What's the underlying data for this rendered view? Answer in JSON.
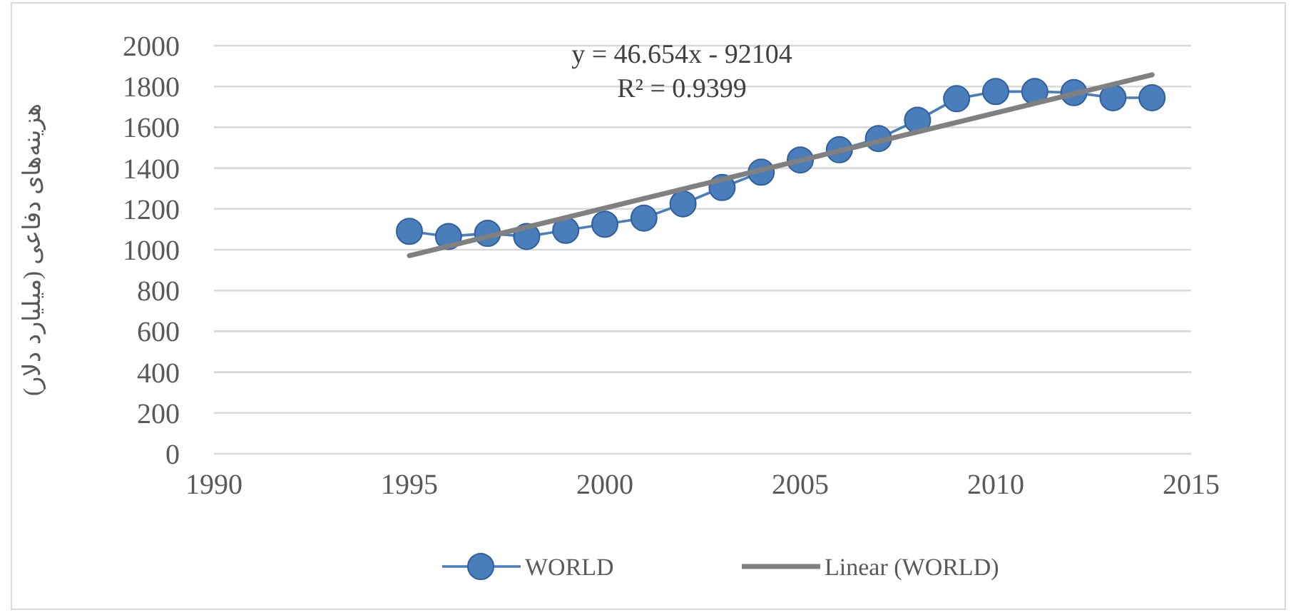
{
  "chart_data": {
    "type": "line",
    "ylabel": "هزینه‌های دفاعی (میلیارد دلار)",
    "annotations": [
      "y = 46.654x - 92104",
      "R² = 0.9399"
    ],
    "xlim": [
      1990,
      2015
    ],
    "xticks": [
      1990,
      1995,
      2000,
      2005,
      2010,
      2015
    ],
    "ylim": [
      0,
      2000
    ],
    "yticks": [
      0,
      200,
      400,
      600,
      800,
      1000,
      1200,
      1400,
      1600,
      1800,
      2000
    ],
    "grid": "y",
    "legend": "bottom",
    "series": [
      {
        "name": "WORLD",
        "color": "#4a7ebb",
        "marker": "circle",
        "x": [
          1995,
          1996,
          1997,
          1998,
          1999,
          2000,
          2001,
          2002,
          2003,
          2004,
          2005,
          2006,
          2007,
          2008,
          2009,
          2010,
          2011,
          2012,
          2013,
          2014
        ],
        "values": [
          1090,
          1065,
          1080,
          1065,
          1095,
          1125,
          1155,
          1225,
          1305,
          1380,
          1440,
          1490,
          1545,
          1635,
          1740,
          1775,
          1775,
          1770,
          1745,
          1745
        ]
      },
      {
        "name": "Linear (WORLD)",
        "color": "#808080",
        "marker": "none",
        "x": [
          1995,
          2014
        ],
        "values": [
          971,
          1857
        ]
      }
    ]
  }
}
